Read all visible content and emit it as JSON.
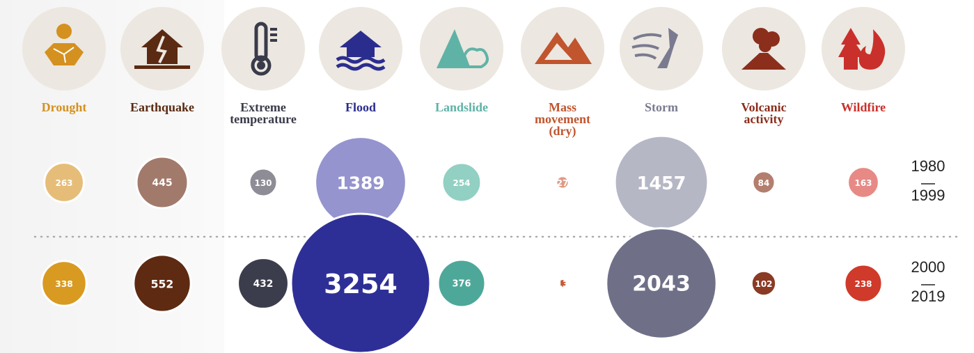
{
  "chart_data": {
    "type": "bubble",
    "categories": [
      "Drought",
      "Earthquake",
      "Extreme temperature",
      "Flood",
      "Landslide",
      "Mass movement (dry)",
      "Storm",
      "Volcanic activity",
      "Wildfire"
    ],
    "label_colors": [
      "#d4911f",
      "#5a2a12",
      "#3a3b4a",
      "#2b2d8e",
      "#5fb3a6",
      "#c0552e",
      "#7a7b90",
      "#8b2e1c",
      "#c9302b"
    ],
    "series": [
      {
        "from": "1980",
        "to": "1999",
        "values": [
          263,
          445,
          130,
          1389,
          254,
          27,
          1457,
          84,
          163
        ],
        "colors": [
          "#e6bd78",
          "#a27a6b",
          "#8e8d96",
          "#9594cf",
          "#92d0c3",
          "#df9a85",
          "#b6b7c5",
          "#b47e6e",
          "#e78a86"
        ]
      },
      {
        "from": "2000",
        "to": "2019",
        "values": [
          338,
          552,
          432,
          3254,
          376,
          13,
          2043,
          102,
          238
        ],
        "colors": [
          "#d99a22",
          "#5e2a12",
          "#3c3d4c",
          "#2e2f96",
          "#4ea89a",
          "#c75a34",
          "#6f7088",
          "#8b3a24",
          "#cf3a2a"
        ]
      }
    ]
  }
}
